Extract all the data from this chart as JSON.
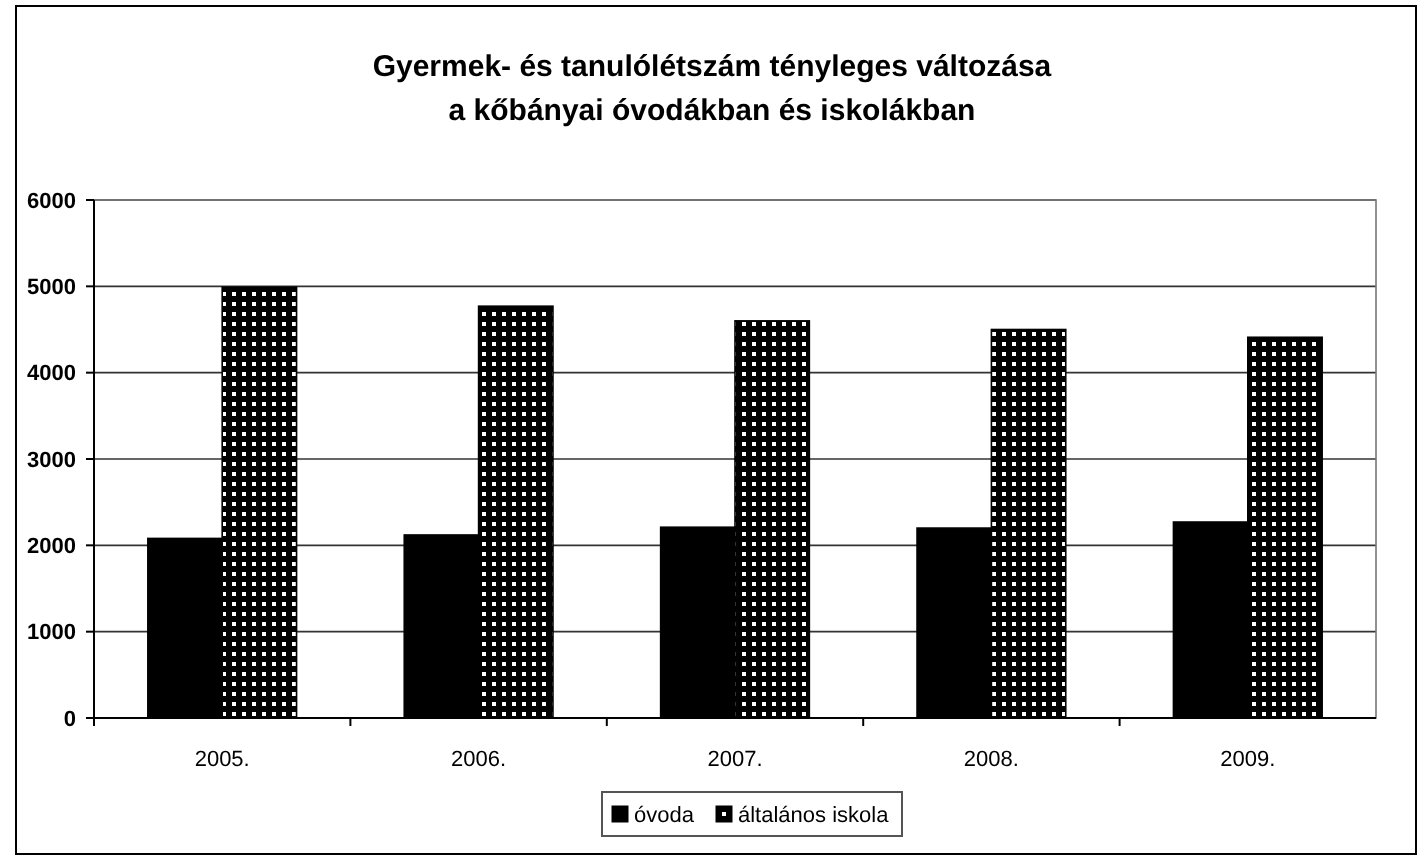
{
  "chart_data": {
    "type": "bar",
    "title": "Gyermek- és tanulólétszám tényleges változása\na kőbányai óvodákban és iskolákban",
    "categories": [
      "2005.",
      "2006.",
      "2007.",
      "2008.",
      "2009."
    ],
    "series": [
      {
        "name": "óvoda",
        "color": "#000000",
        "values": [
          2080,
          2120,
          2210,
          2200,
          2270
        ]
      },
      {
        "name": "általános iskola",
        "color": "#000000",
        "values": [
          4990,
          4770,
          4600,
          4500,
          4410
        ]
      }
    ],
    "ylim": [
      0,
      6000
    ],
    "yticks": [
      0,
      1000,
      2000,
      3000,
      4000,
      5000,
      6000
    ],
    "grid": "y",
    "legend": "bottom"
  }
}
